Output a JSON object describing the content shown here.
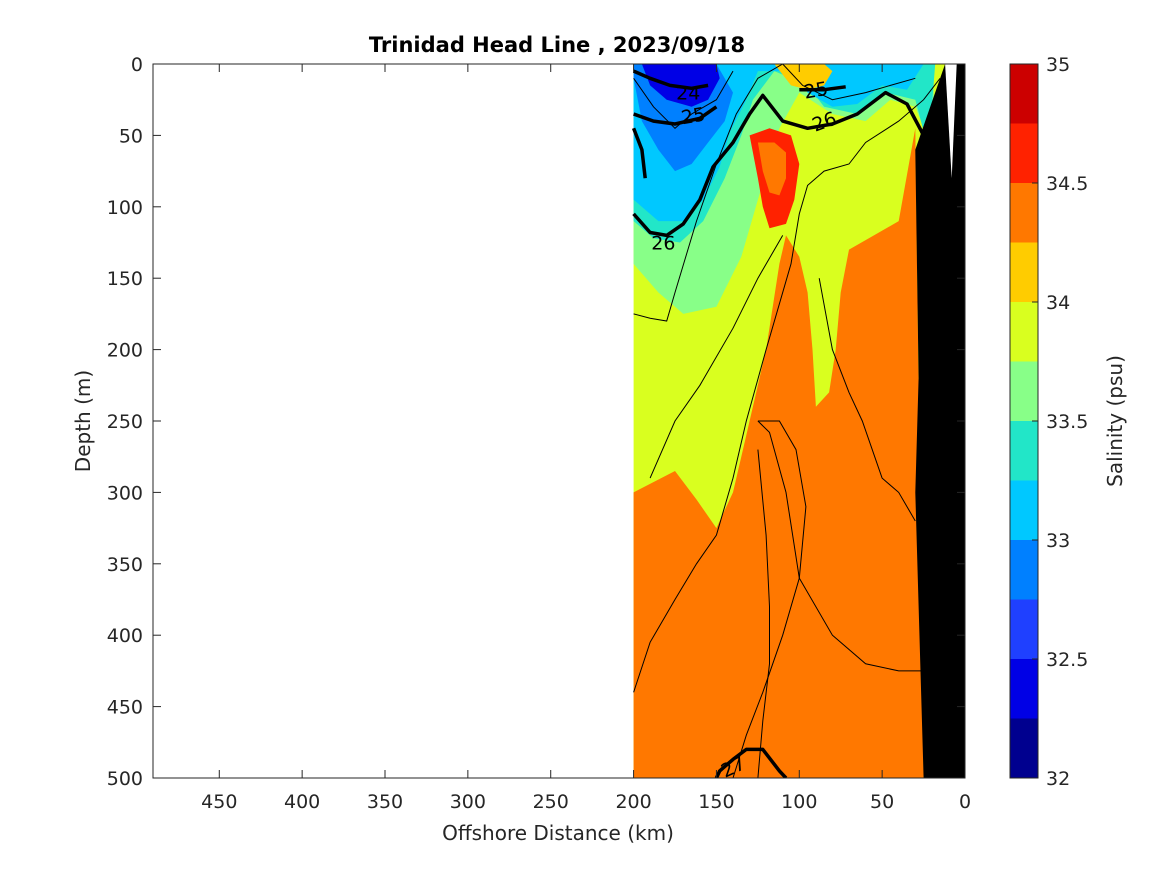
{
  "chart_data": {
    "type": "heatmap",
    "title": "Trinidad Head Line , 2023/09/18",
    "xlabel": "Offshore Distance (km)",
    "ylabel": "Depth (m)",
    "xlim": [
      490,
      0
    ],
    "x_reversed": true,
    "ylim": [
      0,
      500
    ],
    "y_reversed": true,
    "x_ticks": [
      450,
      400,
      350,
      300,
      250,
      200,
      150,
      100,
      50,
      0
    ],
    "y_ticks": [
      0,
      50,
      100,
      150,
      200,
      250,
      300,
      350,
      400,
      450,
      500
    ],
    "grid": false,
    "colorbar": {
      "label": "Salinity (psu)",
      "range": [
        32,
        35
      ],
      "ticks": [
        32,
        32.5,
        33,
        33.5,
        34,
        34.5,
        35
      ],
      "levels": [
        32,
        32.25,
        32.5,
        32.75,
        33,
        33.25,
        33.5,
        33.75,
        34,
        34.25,
        34.5,
        34.75,
        35
      ],
      "colors": [
        "#00008f",
        "#0000e6",
        "#1f40ff",
        "#0080ff",
        "#00c8ff",
        "#22e6c8",
        "#88ff88",
        "#d9ff1f",
        "#ffcc00",
        "#ff7800",
        "#ff2200",
        "#cc0000"
      ]
    },
    "data_extent": {
      "x": [
        0,
        200
      ],
      "y": [
        0,
        500
      ]
    },
    "bathymetry_color": "#000000",
    "salinity_regions": [
      {
        "value": 33.9,
        "note": "background fill 0-200 km, 0-500 m"
      },
      {
        "value": 33.6,
        "note": "upper water column band"
      },
      {
        "value": 33.4,
        "note": "near-surface offshore"
      },
      {
        "value": 33.1,
        "note": "near-surface offshore"
      },
      {
        "value": 32.9,
        "note": "surface lens 140-190 km"
      },
      {
        "value": 32.4,
        "note": "surface core 150-180 km"
      },
      {
        "value": 34.1,
        "note": "deep core and 20-120 km upper"
      },
      {
        "value": 34.35,
        "note": "subsurface max 100-130 km, 50-120 m"
      },
      {
        "value": 34.6,
        "note": "subsurface core 110-125 km, 55-95 m"
      },
      {
        "value": 34.35,
        "note": "patch 55-75 km, 65-95 m"
      }
    ],
    "density_contours": [
      {
        "level": 24,
        "label": "24"
      },
      {
        "level": 25,
        "label": "25"
      },
      {
        "level": 25,
        "label": "25"
      },
      {
        "level": 26,
        "label": "26"
      },
      {
        "level": 26,
        "label": "26"
      },
      {
        "level": 27,
        "label": "27"
      }
    ]
  }
}
